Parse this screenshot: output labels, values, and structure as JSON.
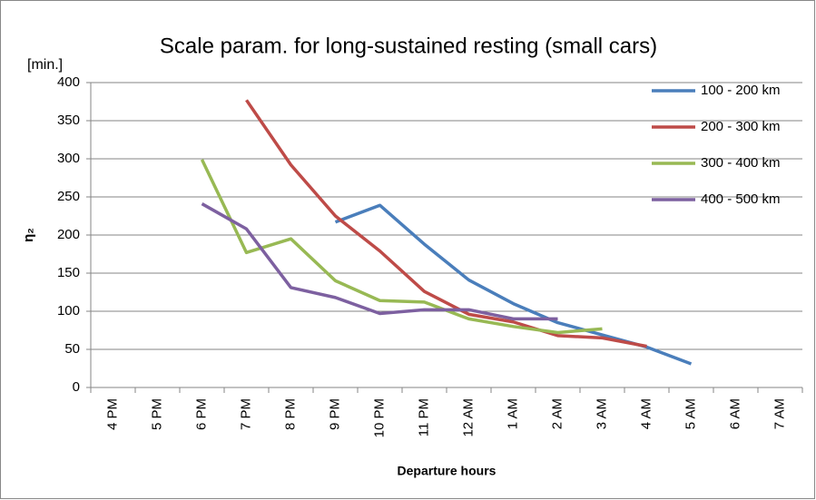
{
  "chart_data": {
    "type": "line",
    "title": "Scale param. for long-sustained resting (small cars)",
    "y_unit_label": "[min.]",
    "y_label": "η₂",
    "x_label": "Departure hours",
    "categories": [
      "4 PM",
      "5 PM",
      "6 PM",
      "7 PM",
      "8 PM",
      "9 PM",
      "10 PM",
      "11 PM",
      "12 AM",
      "1 AM",
      "2 AM",
      "3 AM",
      "4 AM",
      "5 AM",
      "6 AM",
      "7 AM"
    ],
    "series": [
      {
        "name": "100 - 200 km",
        "color": "#4a7ebb",
        "values": [
          null,
          null,
          null,
          null,
          null,
          217,
          239,
          188,
          141,
          110,
          85,
          69,
          53,
          31,
          null,
          null
        ]
      },
      {
        "name": "200 - 300 km",
        "color": "#be4b48",
        "values": [
          null,
          null,
          null,
          377,
          292,
          225,
          179,
          126,
          96,
          86,
          68,
          65,
          54,
          null,
          null,
          null
        ]
      },
      {
        "name": "300 - 400 km",
        "color": "#98b954",
        "values": [
          null,
          null,
          299,
          177,
          195,
          140,
          114,
          112,
          90,
          80,
          72,
          77,
          null,
          null,
          null,
          null
        ]
      },
      {
        "name": "400 - 500 km",
        "color": "#7d60a0",
        "values": [
          null,
          null,
          241,
          208,
          131,
          118,
          97,
          102,
          102,
          90,
          90,
          null,
          null,
          null,
          null,
          null
        ]
      }
    ],
    "ylim": [
      0,
      400
    ],
    "yticks": [
      0,
      50,
      100,
      150,
      200,
      250,
      300,
      350,
      400
    ],
    "grid": true,
    "legend": "right"
  }
}
